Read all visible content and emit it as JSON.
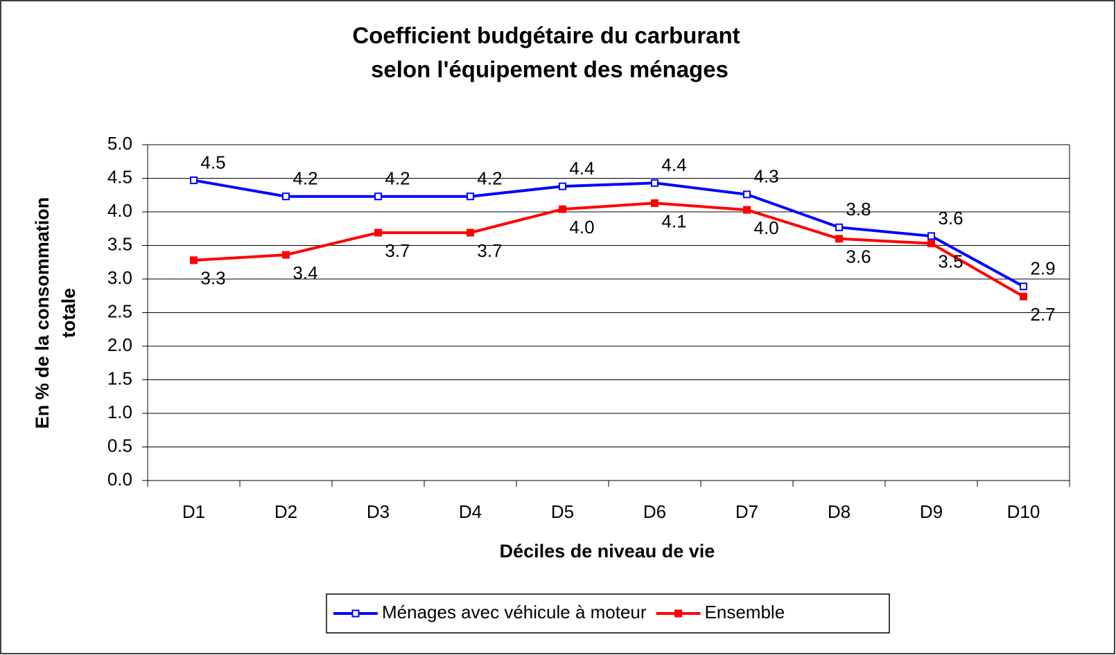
{
  "chart_data": {
    "type": "line",
    "title": [
      "Coefficient budgétaire du carburant",
      "selon l'équipement des ménages"
    ],
    "y_label": [
      "En % de la consommation",
      "totale"
    ],
    "x_label": "Déciles de niveau de vie",
    "categories": [
      "D1",
      "D2",
      "D3",
      "D4",
      "D5",
      "D6",
      "D7",
      "D8",
      "D9",
      "D10"
    ],
    "series": [
      {
        "name": "Ménages avec véhicule à moteur",
        "color": "#0000ff",
        "values": [
          4.47,
          4.23,
          4.23,
          4.23,
          4.38,
          4.43,
          4.26,
          3.77,
          3.64,
          2.89
        ],
        "value_labels": [
          "4.5",
          "4.2",
          "4.2",
          "4.2",
          "4.4",
          "4.4",
          "4.3",
          "3.8",
          "3.6",
          "2.9"
        ]
      },
      {
        "name": "Ensemble",
        "color": "#ff0000",
        "values": [
          3.28,
          3.36,
          3.69,
          3.69,
          4.04,
          4.13,
          4.03,
          3.6,
          3.53,
          2.74
        ],
        "value_labels": [
          "3.3",
          "3.4",
          "3.7",
          "3.7",
          "4.0",
          "4.1",
          "4.0",
          "3.6",
          "3.5",
          "2.7"
        ]
      }
    ],
    "ylim": [
      0,
      5
    ],
    "yticks": [
      {
        "value": 0,
        "label": "0.0"
      },
      0.5,
      {
        "value": 1,
        "label": "1.0"
      },
      1.5,
      {
        "value": 2,
        "label": "2.0"
      },
      2.5,
      {
        "value": 3,
        "label": "3.0"
      },
      3.5,
      {
        "value": 4,
        "label": "4.0"
      },
      4.5,
      {
        "value": 5,
        "label": "5.0"
      }
    ],
    "grid": true,
    "legend": "bottom"
  }
}
